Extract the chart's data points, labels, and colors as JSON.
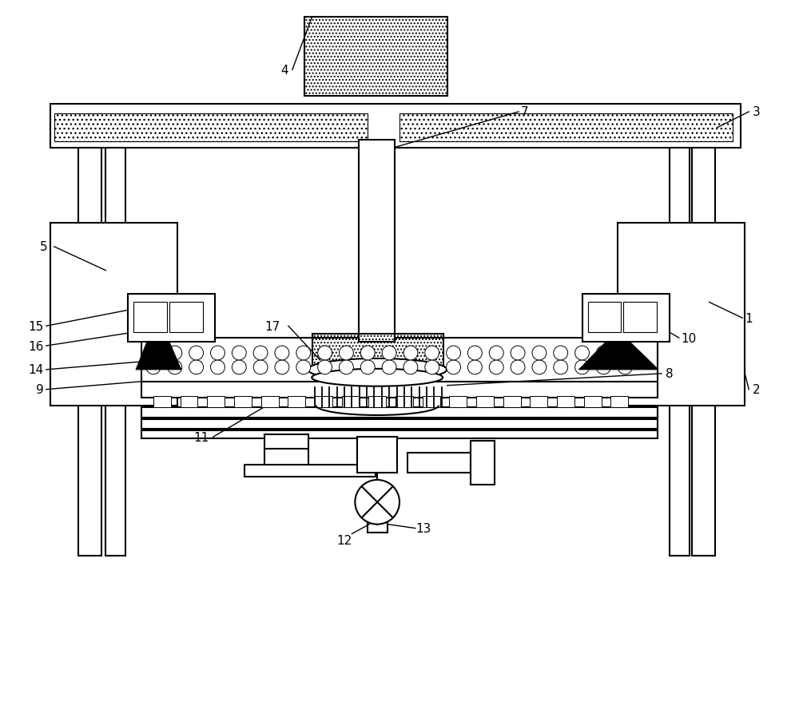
{
  "bg_color": "#ffffff",
  "lw": 1.5,
  "lw_thin": 0.8,
  "fig_w": 10.0,
  "fig_h": 8.79,
  "font_size": 11
}
